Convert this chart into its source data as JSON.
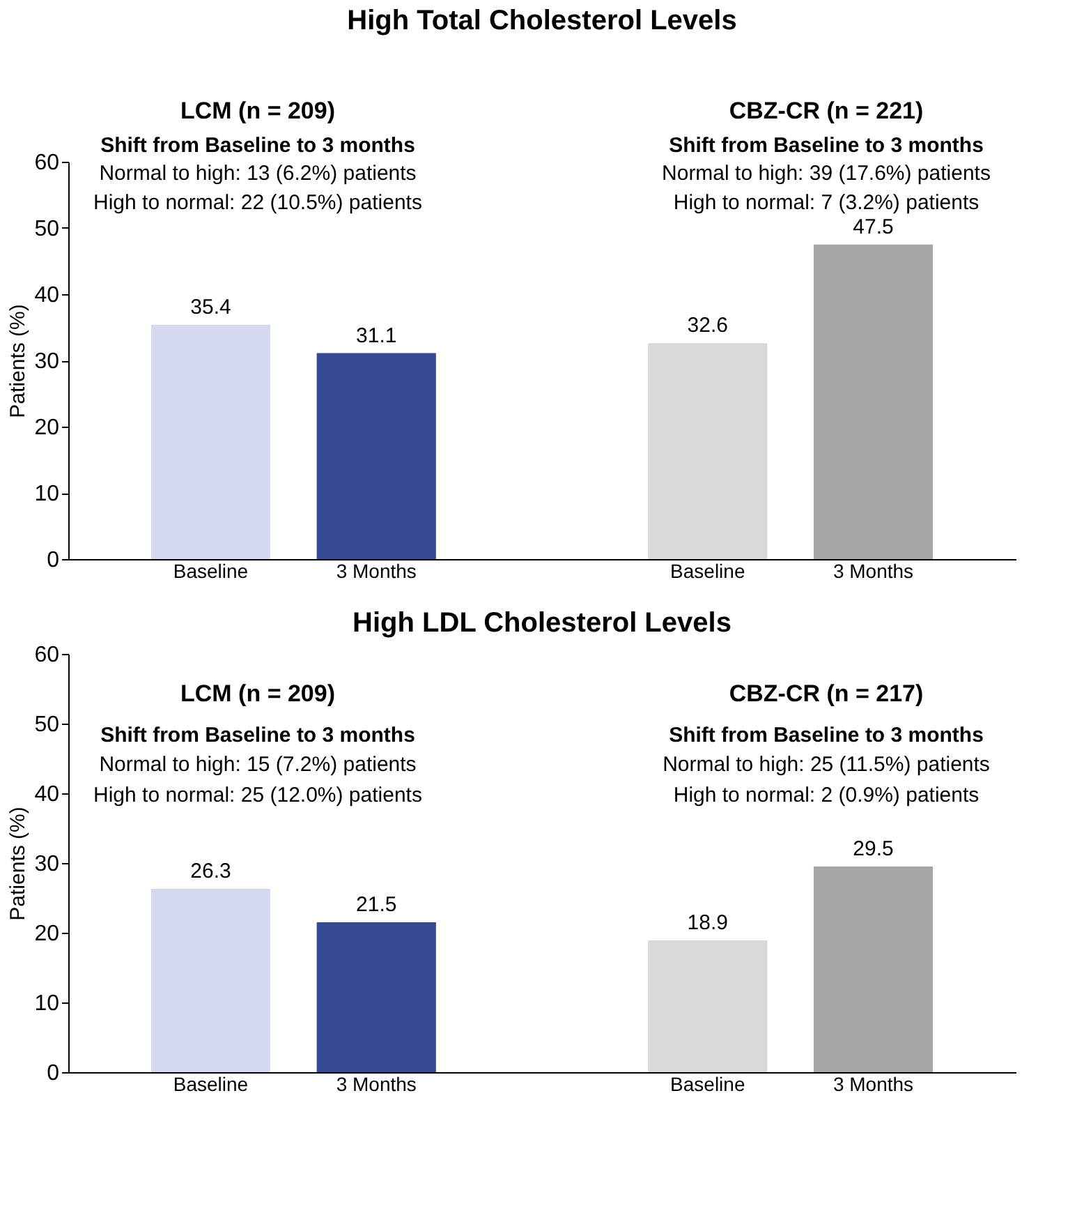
{
  "chart_data": [
    {
      "type": "bar",
      "title": "High Total Cholesterol Levels",
      "ylabel": "Patients (%)",
      "categories": [
        "Baseline",
        "3 Months",
        null,
        "Baseline",
        "3 Months"
      ],
      "values": [
        35.4,
        31.1,
        null,
        32.6,
        47.5
      ],
      "colors": [
        "#d4d9f0",
        "#354a93",
        "#ffffff",
        "#d9d9d9",
        "#a6a6a6"
      ],
      "ylim": [
        0,
        60
      ],
      "yticks": [
        0,
        10,
        20,
        30,
        40,
        50,
        60
      ],
      "grid": false,
      "data_labels": true,
      "annotations": [
        "LCM (n = 209)",
        "Shift from Baseline to 3 months",
        "Normal to high: 13 (6.2%) patients",
        "High to normal: 22 (10.5%) patients",
        "CBZ-CR (n = 221)",
        "Shift from Baseline to 3 months",
        "Normal to high: 39 (17.6%) patients",
        "High to normal: 7 (3.2%) patients"
      ]
    },
    {
      "type": "bar",
      "title": "High LDL Cholesterol Levels",
      "ylabel": "Patients (%)",
      "categories": [
        "Baseline",
        "3 Months",
        null,
        "Baseline",
        "3 Months"
      ],
      "values": [
        26.3,
        21.5,
        null,
        18.9,
        29.5
      ],
      "colors": [
        "#d4d9f0",
        "#354a93",
        "#ffffff",
        "#d9d9d9",
        "#a6a6a6"
      ],
      "ylim": [
        0,
        60
      ],
      "yticks": [
        0,
        10,
        20,
        30,
        40,
        50,
        60
      ],
      "grid": false,
      "data_labels": true,
      "annotations": [
        "LCM (n = 209)",
        "Shift from Baseline to 3 months",
        "Normal to high: 15 (7.2%) patients",
        "High to normal: 25 (12.0%) patients",
        "CBZ-CR (n = 217)",
        "Shift from Baseline to 3 months",
        "Normal to high: 25 (11.5%) patients",
        "High to normal: 2 (0.9%) patients"
      ]
    }
  ]
}
